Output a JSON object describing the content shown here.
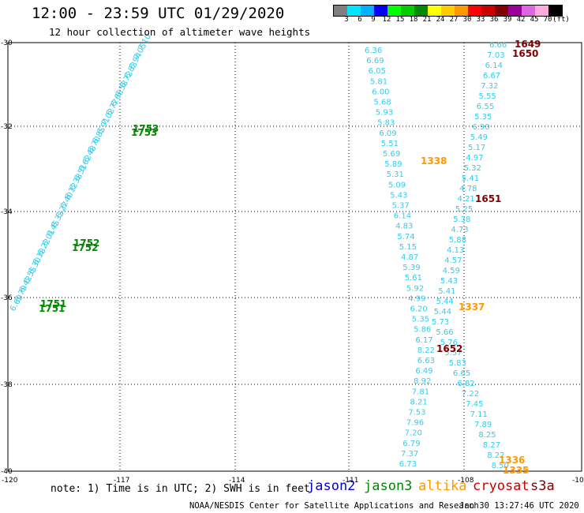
{
  "header": {
    "title": "12:00 - 23:59 UTC 01/29/2020",
    "subtitle": "12 hour collection of altimeter wave heights"
  },
  "colorbar": {
    "colors": [
      "#7f7f7f",
      "#00e5ff",
      "#00b0ff",
      "#0000ff",
      "#00ff00",
      "#00cc00",
      "#008800",
      "#ffff00",
      "#ffcc00",
      "#ff9900",
      "#ff0000",
      "#cc0000",
      "#800000",
      "#990099",
      "#e066e0",
      "#ffaadd",
      "#000000"
    ],
    "labels": [
      "3",
      "6",
      "9",
      "12",
      "15",
      "18",
      "21",
      "24",
      "27",
      "30",
      "33",
      "36",
      "39",
      "42",
      "45",
      "70",
      "(ft)"
    ]
  },
  "axes": {
    "lon_ticks": [
      "-120",
      "-117",
      "-114",
      "-111",
      "-108",
      "-10"
    ],
    "lat_ticks": [
      "-30",
      "-32",
      "-34",
      "-36",
      "-38",
      "-40"
    ]
  },
  "tracks": {
    "cyan_east": {
      "color": "#33ccee",
      "labels": [
        "6.36",
        "6.69",
        "6.05",
        "5.81",
        "6.00",
        "5.68",
        "5.93",
        "5.83",
        "6.09",
        "5.51",
        "5.69",
        "5.89",
        "5.31",
        "5.09",
        "5.43",
        "5.37",
        "6.14",
        "4.83",
        "5.74",
        "5.15",
        "4.87",
        "5.39",
        "5.61",
        "5.92",
        "4.99",
        "6.20",
        "5.35",
        "5.86",
        "6.17",
        "8.22",
        "6.63",
        "6.49",
        "8.92",
        "7.81",
        "8.21",
        "7.53",
        "7.96",
        "7.20",
        "6.79",
        "7.37",
        "6.73"
      ]
    },
    "cyan_north": {
      "color": "#33ccee",
      "labels": [
        "6.66",
        "7.03",
        "6.14",
        "6.67",
        "7.32",
        "5.55",
        "6.55",
        "5.35",
        "6.90",
        "5.49",
        "5.17",
        "4.97",
        "5.32",
        "5.41",
        "4.78",
        "4.21",
        "5.25",
        "5.38",
        "4.73",
        "5.88",
        "4.13",
        "4.57",
        "4.59",
        "5.43",
        "5.41",
        "5.44",
        "5.44",
        "5.73",
        "5.66",
        "5.76",
        "5.57",
        "5.83",
        "6.65",
        "6.82",
        "7.22",
        "7.45",
        "7.11",
        "7.89",
        "8.25",
        "8.27",
        "8.22",
        "8.50"
      ]
    },
    "cyan_west": {
      "color": "#33ccee",
      "labels": [
        "6.69",
        "6.79",
        "6.42",
        "6.55",
        "6.30",
        "6.18",
        "6.22",
        "6.01",
        "6.45",
        "6.33",
        "6.27",
        "6.40",
        "6.12",
        "6.38",
        "6.51",
        "6.62",
        "6.48",
        "6.70",
        "6.85",
        "6.91",
        "7.02",
        "6.77",
        "6.66",
        "6.58",
        "6.72",
        "6.83",
        "6.94",
        "7.05",
        "7.10"
      ]
    }
  },
  "pass_times": [
    {
      "id": "j3-1753a",
      "text": "1753",
      "sat": "jason3"
    },
    {
      "id": "j3-1753b",
      "text": "1753",
      "sat": "jason3"
    },
    {
      "id": "j3-1752a",
      "text": "1752",
      "sat": "jason3"
    },
    {
      "id": "j3-1752b",
      "text": "1752",
      "sat": "jason3"
    },
    {
      "id": "j3-1751a",
      "text": "1751",
      "sat": "jason3"
    },
    {
      "id": "j3-1751b",
      "text": "1751",
      "sat": "jason3"
    },
    {
      "id": "s3a-1649",
      "text": "1649",
      "sat": "s3a"
    },
    {
      "id": "s3a-1650",
      "text": "1650",
      "sat": "s3a"
    },
    {
      "id": "s3a-1651",
      "text": "1651",
      "sat": "s3a"
    },
    {
      "id": "s3a-1652",
      "text": "1652",
      "sat": "s3a"
    },
    {
      "id": "al-1338",
      "text": "1338",
      "sat": "altika"
    },
    {
      "id": "al-1337",
      "text": "1337",
      "sat": "altika"
    },
    {
      "id": "al-1336",
      "text": "1336",
      "sat": "altika"
    },
    {
      "id": "al-1335",
      "text": "1335",
      "sat": "altika"
    }
  ],
  "legend": {
    "note": "note: 1) Time is in UTC; 2) SWH is in feet",
    "jason2": "jason2",
    "jason3": "jason3",
    "altika": "altika",
    "cryosat": "cryosat",
    "s3a": "s3a",
    "colors": {
      "jason2": "#0000dd",
      "jason3": "#008800",
      "altika": "#ff9900",
      "cryosat": "#cc0000",
      "s3a": "#800000"
    }
  },
  "footer": {
    "credit": "NOAA/NESDIS Center for Satellite Applications and Research",
    "timestamp": "Jan 30 13:27:46 UTC 2020"
  }
}
